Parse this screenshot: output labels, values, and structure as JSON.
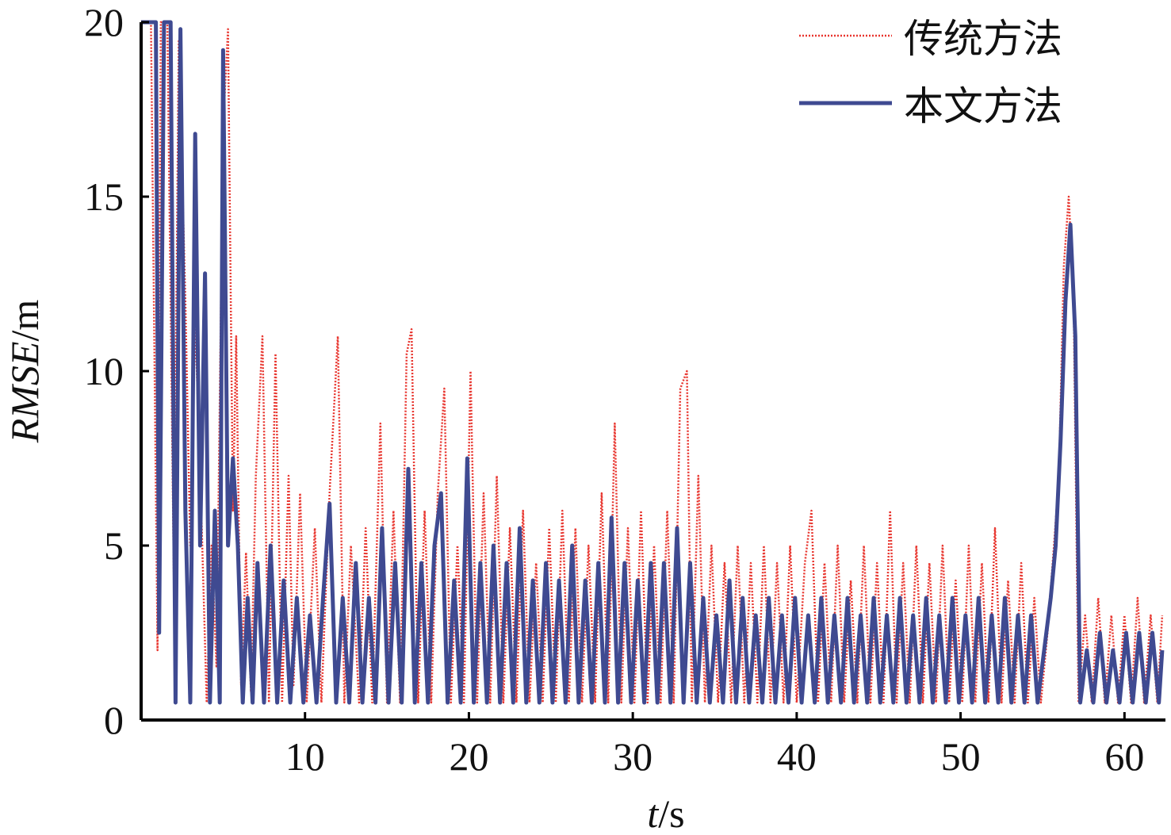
{
  "chart_data": {
    "type": "line",
    "xlabel_italic": "t",
    "xlabel_unit": "/s",
    "ylabel_italic": "RMSE",
    "ylabel_unit": "/m",
    "xlim": [
      0,
      62.5
    ],
    "ylim": [
      0,
      20
    ],
    "x_ticks": [
      10,
      20,
      30,
      40,
      50,
      60
    ],
    "y_ticks": [
      0,
      5,
      10,
      15,
      20
    ],
    "grid": false,
    "legend_position": "top-right",
    "series": [
      {
        "name": "传统方法",
        "style": "dotted",
        "color": "#e8352e",
        "points": [
          [
            0.0,
            20
          ],
          [
            0.6,
            20
          ],
          [
            1.0,
            2.0
          ],
          [
            1.2,
            20
          ],
          [
            1.6,
            20
          ],
          [
            2.0,
            4.0
          ],
          [
            2.3,
            19.5
          ],
          [
            2.7,
            12.0
          ],
          [
            3.0,
            5.0
          ],
          [
            3.3,
            11.5
          ],
          [
            3.7,
            5.5
          ],
          [
            4.0,
            0.5
          ],
          [
            4.3,
            5.0
          ],
          [
            4.6,
            1.5
          ],
          [
            5.0,
            17.0
          ],
          [
            5.3,
            19.8
          ],
          [
            5.6,
            6.0
          ],
          [
            5.8,
            11.0
          ],
          [
            6.1,
            1.0
          ],
          [
            6.4,
            4.8
          ],
          [
            6.7,
            0.8
          ],
          [
            7.0,
            7.0
          ],
          [
            7.4,
            11.0
          ],
          [
            7.8,
            0.5
          ],
          [
            8.2,
            10.5
          ],
          [
            8.6,
            0.5
          ],
          [
            9.0,
            7.0
          ],
          [
            9.3,
            1.0
          ],
          [
            9.7,
            6.5
          ],
          [
            10.1,
            0.5
          ],
          [
            10.6,
            5.5
          ],
          [
            11.0,
            0.5
          ],
          [
            11.5,
            6.5
          ],
          [
            12.0,
            11.0
          ],
          [
            12.4,
            0.5
          ],
          [
            12.8,
            5.0
          ],
          [
            13.3,
            0.5
          ],
          [
            13.7,
            5.5
          ],
          [
            14.1,
            0.5
          ],
          [
            14.6,
            8.5
          ],
          [
            15.0,
            0.5
          ],
          [
            15.4,
            6.0
          ],
          [
            15.8,
            0.5
          ],
          [
            16.2,
            10.5
          ],
          [
            16.5,
            11.2
          ],
          [
            16.9,
            0.5
          ],
          [
            17.3,
            6.0
          ],
          [
            17.7,
            0.5
          ],
          [
            18.1,
            6.5
          ],
          [
            18.5,
            9.5
          ],
          [
            18.9,
            0.5
          ],
          [
            19.3,
            5.0
          ],
          [
            19.7,
            0.5
          ],
          [
            20.1,
            10.0
          ],
          [
            20.5,
            0.5
          ],
          [
            20.9,
            6.5
          ],
          [
            21.3,
            0.5
          ],
          [
            21.7,
            7.0
          ],
          [
            22.1,
            0.5
          ],
          [
            22.5,
            5.5
          ],
          [
            22.9,
            0.5
          ],
          [
            23.3,
            6.0
          ],
          [
            23.7,
            0.5
          ],
          [
            24.1,
            4.5
          ],
          [
            24.5,
            0.5
          ],
          [
            24.9,
            5.5
          ],
          [
            25.3,
            0.5
          ],
          [
            25.7,
            6.0
          ],
          [
            26.1,
            0.5
          ],
          [
            26.5,
            5.5
          ],
          [
            26.9,
            0.5
          ],
          [
            27.3,
            5.0
          ],
          [
            27.7,
            0.5
          ],
          [
            28.1,
            6.5
          ],
          [
            28.5,
            0.5
          ],
          [
            28.9,
            8.5
          ],
          [
            29.3,
            0.5
          ],
          [
            29.7,
            5.5
          ],
          [
            30.1,
            0.5
          ],
          [
            30.5,
            6.0
          ],
          [
            30.9,
            0.5
          ],
          [
            31.3,
            5.0
          ],
          [
            31.7,
            0.5
          ],
          [
            32.1,
            6.0
          ],
          [
            32.5,
            0.5
          ],
          [
            32.9,
            9.5
          ],
          [
            33.3,
            10.0
          ],
          [
            33.6,
            0.5
          ],
          [
            34.0,
            7.0
          ],
          [
            34.4,
            0.5
          ],
          [
            34.8,
            5.0
          ],
          [
            35.2,
            0.5
          ],
          [
            35.6,
            4.5
          ],
          [
            36.0,
            0.5
          ],
          [
            36.4,
            5.0
          ],
          [
            36.8,
            0.5
          ],
          [
            37.2,
            4.5
          ],
          [
            37.6,
            0.5
          ],
          [
            38.0,
            5.0
          ],
          [
            38.4,
            0.5
          ],
          [
            38.8,
            4.5
          ],
          [
            39.2,
            0.5
          ],
          [
            39.6,
            5.0
          ],
          [
            40.0,
            0.5
          ],
          [
            40.5,
            4.5
          ],
          [
            40.9,
            6.0
          ],
          [
            41.3,
            0.5
          ],
          [
            41.7,
            4.5
          ],
          [
            42.1,
            0.5
          ],
          [
            42.5,
            5.0
          ],
          [
            42.9,
            0.5
          ],
          [
            43.3,
            4.0
          ],
          [
            43.7,
            0.5
          ],
          [
            44.1,
            5.0
          ],
          [
            44.5,
            0.5
          ],
          [
            44.9,
            4.5
          ],
          [
            45.3,
            0.5
          ],
          [
            45.7,
            6.0
          ],
          [
            46.1,
            0.5
          ],
          [
            46.5,
            4.5
          ],
          [
            46.9,
            0.5
          ],
          [
            47.3,
            5.0
          ],
          [
            47.7,
            0.5
          ],
          [
            48.1,
            4.5
          ],
          [
            48.5,
            0.5
          ],
          [
            48.9,
            5.0
          ],
          [
            49.3,
            0.5
          ],
          [
            49.7,
            4.0
          ],
          [
            50.1,
            0.5
          ],
          [
            50.5,
            5.0
          ],
          [
            50.9,
            0.5
          ],
          [
            51.3,
            4.5
          ],
          [
            51.7,
            0.5
          ],
          [
            52.1,
            5.5
          ],
          [
            52.5,
            0.5
          ],
          [
            52.9,
            4.0
          ],
          [
            53.3,
            0.5
          ],
          [
            53.7,
            4.5
          ],
          [
            54.1,
            0.5
          ],
          [
            54.5,
            3.5
          ],
          [
            54.9,
            0.5
          ],
          [
            55.3,
            2.5
          ],
          [
            55.7,
            5.0
          ],
          [
            56.0,
            7.0
          ],
          [
            56.3,
            13.0
          ],
          [
            56.6,
            15.0
          ],
          [
            56.9,
            12.0
          ],
          [
            57.2,
            0.5
          ],
          [
            57.6,
            3.0
          ],
          [
            58.0,
            0.5
          ],
          [
            58.4,
            3.5
          ],
          [
            58.8,
            0.5
          ],
          [
            59.2,
            3.0
          ],
          [
            59.6,
            0.5
          ],
          [
            60.0,
            3.0
          ],
          [
            60.4,
            0.5
          ],
          [
            60.8,
            3.5
          ],
          [
            61.2,
            0.5
          ],
          [
            61.6,
            3.0
          ],
          [
            62.0,
            0.5
          ],
          [
            62.3,
            3.0
          ]
        ]
      },
      {
        "name": "本文方法",
        "style": "solid",
        "color": "#3f4a91",
        "points": [
          [
            0.0,
            20
          ],
          [
            0.5,
            20
          ],
          [
            0.9,
            20
          ],
          [
            1.1,
            2.5
          ],
          [
            1.4,
            20
          ],
          [
            1.8,
            20
          ],
          [
            2.1,
            0.5
          ],
          [
            2.4,
            19.8
          ],
          [
            2.7,
            6.0
          ],
          [
            3.0,
            0.5
          ],
          [
            3.3,
            16.8
          ],
          [
            3.6,
            5.0
          ],
          [
            3.9,
            12.8
          ],
          [
            4.2,
            0.5
          ],
          [
            4.5,
            6.0
          ],
          [
            4.8,
            0.5
          ],
          [
            5.0,
            19.2
          ],
          [
            5.3,
            5.0
          ],
          [
            5.6,
            7.5
          ],
          [
            5.9,
            5.0
          ],
          [
            6.2,
            0.5
          ],
          [
            6.5,
            3.5
          ],
          [
            6.8,
            0.5
          ],
          [
            7.1,
            4.5
          ],
          [
            7.5,
            0.5
          ],
          [
            7.9,
            5.0
          ],
          [
            8.3,
            0.5
          ],
          [
            8.7,
            4.0
          ],
          [
            9.1,
            0.5
          ],
          [
            9.5,
            3.5
          ],
          [
            9.9,
            0.5
          ],
          [
            10.3,
            3.0
          ],
          [
            10.7,
            0.5
          ],
          [
            11.1,
            3.5
          ],
          [
            11.5,
            6.2
          ],
          [
            11.9,
            0.5
          ],
          [
            12.3,
            3.5
          ],
          [
            12.7,
            0.5
          ],
          [
            13.1,
            4.5
          ],
          [
            13.5,
            0.5
          ],
          [
            13.9,
            3.5
          ],
          [
            14.3,
            0.5
          ],
          [
            14.7,
            5.5
          ],
          [
            15.1,
            0.5
          ],
          [
            15.5,
            4.5
          ],
          [
            15.9,
            0.5
          ],
          [
            16.3,
            7.2
          ],
          [
            16.7,
            0.5
          ],
          [
            17.1,
            4.5
          ],
          [
            17.5,
            0.5
          ],
          [
            17.9,
            5.0
          ],
          [
            18.3,
            6.5
          ],
          [
            18.7,
            0.5
          ],
          [
            19.1,
            4.0
          ],
          [
            19.5,
            0.5
          ],
          [
            19.9,
            7.5
          ],
          [
            20.3,
            0.5
          ],
          [
            20.7,
            4.5
          ],
          [
            21.1,
            0.5
          ],
          [
            21.5,
            5.0
          ],
          [
            21.9,
            0.5
          ],
          [
            22.3,
            4.5
          ],
          [
            22.7,
            0.5
          ],
          [
            23.1,
            5.5
          ],
          [
            23.5,
            0.5
          ],
          [
            23.9,
            4.0
          ],
          [
            24.3,
            0.5
          ],
          [
            24.7,
            4.5
          ],
          [
            25.1,
            0.5
          ],
          [
            25.5,
            4.0
          ],
          [
            25.9,
            0.5
          ],
          [
            26.3,
            5.0
          ],
          [
            26.7,
            0.5
          ],
          [
            27.1,
            4.0
          ],
          [
            27.5,
            0.5
          ],
          [
            27.9,
            4.5
          ],
          [
            28.3,
            0.5
          ],
          [
            28.7,
            5.8
          ],
          [
            29.1,
            0.5
          ],
          [
            29.5,
            4.5
          ],
          [
            29.9,
            0.5
          ],
          [
            30.3,
            4.0
          ],
          [
            30.7,
            0.5
          ],
          [
            31.1,
            4.5
          ],
          [
            31.5,
            0.5
          ],
          [
            31.9,
            4.5
          ],
          [
            32.3,
            0.5
          ],
          [
            32.7,
            5.5
          ],
          [
            33.1,
            0.5
          ],
          [
            33.5,
            4.5
          ],
          [
            33.9,
            0.5
          ],
          [
            34.3,
            3.5
          ],
          [
            34.7,
            0.5
          ],
          [
            35.1,
            3.0
          ],
          [
            35.5,
            0.5
          ],
          [
            35.9,
            4.0
          ],
          [
            36.3,
            0.5
          ],
          [
            36.7,
            3.5
          ],
          [
            37.1,
            0.5
          ],
          [
            37.5,
            3.0
          ],
          [
            37.9,
            0.5
          ],
          [
            38.3,
            3.5
          ],
          [
            38.7,
            0.5
          ],
          [
            39.1,
            3.0
          ],
          [
            39.5,
            0.5
          ],
          [
            39.9,
            3.5
          ],
          [
            40.3,
            0.5
          ],
          [
            40.7,
            3.0
          ],
          [
            41.1,
            0.5
          ],
          [
            41.5,
            3.5
          ],
          [
            41.9,
            0.5
          ],
          [
            42.3,
            3.0
          ],
          [
            42.7,
            0.5
          ],
          [
            43.1,
            3.5
          ],
          [
            43.5,
            0.5
          ],
          [
            43.9,
            3.0
          ],
          [
            44.3,
            0.5
          ],
          [
            44.7,
            3.5
          ],
          [
            45.1,
            0.5
          ],
          [
            45.5,
            3.0
          ],
          [
            45.9,
            0.5
          ],
          [
            46.3,
            3.5
          ],
          [
            46.7,
            0.5
          ],
          [
            47.1,
            3.0
          ],
          [
            47.5,
            0.5
          ],
          [
            47.9,
            3.5
          ],
          [
            48.3,
            0.5
          ],
          [
            48.7,
            3.0
          ],
          [
            49.1,
            0.5
          ],
          [
            49.5,
            3.5
          ],
          [
            49.9,
            0.5
          ],
          [
            50.3,
            3.0
          ],
          [
            50.7,
            0.5
          ],
          [
            51.1,
            3.5
          ],
          [
            51.5,
            0.5
          ],
          [
            51.9,
            3.0
          ],
          [
            52.3,
            0.5
          ],
          [
            52.7,
            3.5
          ],
          [
            53.1,
            0.5
          ],
          [
            53.5,
            3.0
          ],
          [
            53.9,
            0.5
          ],
          [
            54.3,
            3.0
          ],
          [
            54.7,
            0.5
          ],
          [
            55.1,
            2.0
          ],
          [
            55.5,
            3.5
          ],
          [
            55.8,
            5.0
          ],
          [
            56.1,
            8.0
          ],
          [
            56.4,
            12.0
          ],
          [
            56.7,
            14.2
          ],
          [
            57.0,
            11.0
          ],
          [
            57.3,
            0.5
          ],
          [
            57.7,
            2.0
          ],
          [
            58.1,
            0.5
          ],
          [
            58.5,
            2.5
          ],
          [
            58.9,
            0.5
          ],
          [
            59.3,
            2.0
          ],
          [
            59.7,
            0.5
          ],
          [
            60.1,
            2.5
          ],
          [
            60.5,
            0.5
          ],
          [
            60.9,
            2.5
          ],
          [
            61.3,
            0.5
          ],
          [
            61.7,
            2.5
          ],
          [
            62.1,
            0.5
          ],
          [
            62.3,
            2.0
          ]
        ]
      }
    ]
  }
}
